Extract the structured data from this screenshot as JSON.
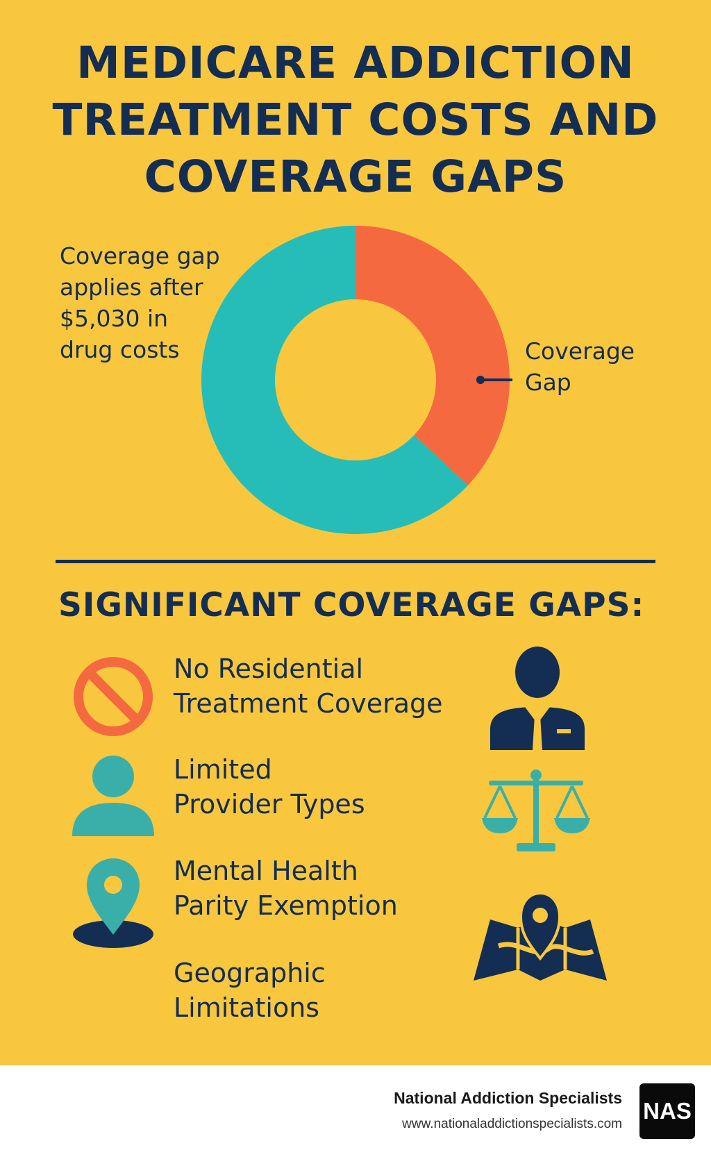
{
  "title": {
    "line1": "MEDICARE ADDICTION",
    "line2": "TREATMENT COSTS AND",
    "line3": "COVERAGE GAPS"
  },
  "chart_data": {
    "type": "pie",
    "style": "donut",
    "slices": [
      {
        "label": "Coverage Gap",
        "value": 37,
        "color": "#F4693F"
      },
      {
        "label": "",
        "value": 63,
        "color": "#26BDB8"
      }
    ],
    "annotation": {
      "line1": "Coverage gap",
      "line2": "applies after",
      "line3": "$5,030 in",
      "line4": "drug costs"
    },
    "slice_label": {
      "line1": "Coverage",
      "line2": "Gap"
    }
  },
  "section": {
    "title": "SIGNIFICANT COVERAGE GAPS:",
    "items": [
      {
        "line1": "No Residential",
        "line2": "Treatment Coverage",
        "icon": "prohibited-icon"
      },
      {
        "line1": "Limited",
        "line2": "Provider Types",
        "icon": "person-icon"
      },
      {
        "line1": "Mental Health",
        "line2": "Parity Exemption",
        "icon": "location-pin-icon"
      },
      {
        "line1": "Geographic",
        "line2": "Limitations",
        "icon": ""
      }
    ],
    "side_icons": [
      "professional-person-icon",
      "scales-of-justice-icon",
      "map-pin-icon"
    ]
  },
  "colors": {
    "background": "#F8C73E",
    "navy": "#142D52",
    "teal": "#26BDB8",
    "teal_icon": "#3AAFA9",
    "orange": "#F4693F"
  },
  "footer": {
    "name": "National Addiction Specialists",
    "url": "www.nationaladdictionspecialists.com",
    "logo_text": "NAS"
  }
}
